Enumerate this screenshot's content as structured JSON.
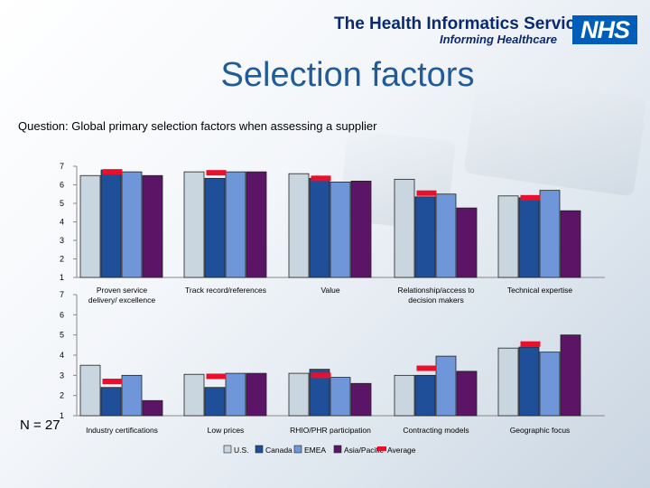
{
  "header": {
    "org_name": "The Health Informatics Service",
    "tagline": "Informing Healthcare",
    "logo_text": "NHS"
  },
  "page_title": "Selection factors",
  "question": "Question:  Global primary selection factors when assessing a supplier",
  "sample_label": "N = 27",
  "colors": {
    "us": "#c9d5df",
    "canada": "#1f4f99",
    "emea": "#6f96d8",
    "asia": "#5c1466",
    "average": "#e8102a"
  },
  "legend": [
    "U.S.",
    "Canada",
    "EMEA",
    "Asia/Pacific",
    "Average"
  ],
  "chart_data": [
    {
      "type": "bar",
      "ylim": [
        1,
        7
      ],
      "ticks": [
        1,
        2,
        3,
        4,
        5,
        6,
        7
      ],
      "categories": [
        "Proven service delivery/ excellence",
        "Track record/references",
        "Value",
        "Relationship/access to decision makers",
        "Technical expertise"
      ],
      "series": [
        {
          "name": "U.S.",
          "values": [
            6.5,
            6.7,
            6.6,
            6.3,
            5.4
          ]
        },
        {
          "name": "Canada",
          "values": [
            6.8,
            6.35,
            6.35,
            5.35,
            5.3
          ]
        },
        {
          "name": "EMEA",
          "values": [
            6.7,
            6.7,
            6.15,
            5.5,
            5.7
          ]
        },
        {
          "name": "Asia/Pacific",
          "values": [
            6.5,
            6.7,
            6.2,
            4.75,
            4.6
          ]
        }
      ],
      "average": [
        6.7,
        6.65,
        6.35,
        5.55,
        5.3
      ]
    },
    {
      "type": "bar",
      "ylim": [
        1,
        7
      ],
      "ticks": [
        1,
        2,
        3,
        4,
        5,
        6,
        7
      ],
      "categories": [
        "Industry certifications",
        "Low prices",
        "RHIO/PHR participation",
        "Contracting models",
        "Geographic focus"
      ],
      "series": [
        {
          "name": "U.S.",
          "values": [
            3.5,
            3.05,
            3.1,
            3.0,
            4.35
          ]
        },
        {
          "name": "Canada",
          "values": [
            2.4,
            2.4,
            3.3,
            3.0,
            4.4
          ]
        },
        {
          "name": "EMEA",
          "values": [
            3.0,
            3.1,
            2.9,
            3.95,
            4.15
          ]
        },
        {
          "name": "Asia/Pacific",
          "values": [
            1.75,
            3.1,
            2.6,
            3.2,
            5.0
          ]
        }
      ],
      "average": [
        2.7,
        2.95,
        3.0,
        3.35,
        4.55
      ]
    }
  ]
}
